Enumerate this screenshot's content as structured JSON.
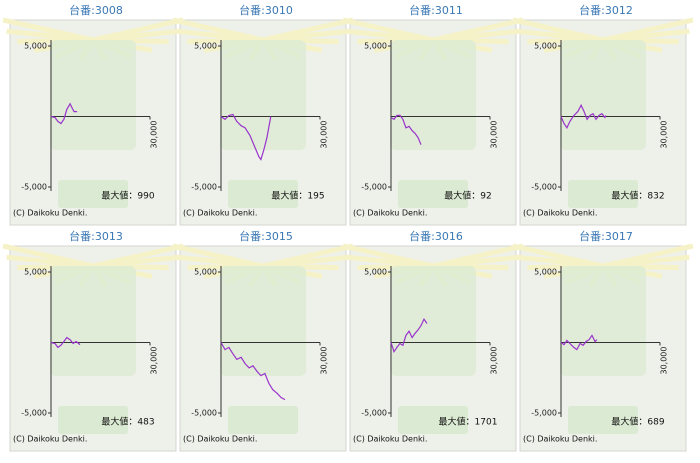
{
  "chart_data": [
    {
      "type": "line",
      "title": "台番:3008",
      "max_label": "最大値：990",
      "copyright": "(C) Daikoku Denki.",
      "xlim": [
        0,
        30000
      ],
      "ylim": [
        -5000,
        5000
      ],
      "xticks": [
        {
          "value": 30000,
          "label": "30,000"
        }
      ],
      "yticks": [
        {
          "value": 5000,
          "label": "5,000"
        },
        {
          "value": -5000,
          "label": "-5,000"
        }
      ],
      "x": [
        0,
        1200,
        2100,
        3000,
        3900,
        4800,
        5800,
        6400,
        7000,
        7900
      ],
      "series": [
        {
          "color": "#9933cc",
          "values": [
            0,
            -70,
            -350,
            -500,
            -200,
            500,
            900,
            600,
            350,
            350
          ]
        }
      ]
    },
    {
      "type": "line",
      "title": "台番:3010",
      "max_label": "最大値：195",
      "copyright": "(C) Daikoku Denki.",
      "xlim": [
        0,
        30000
      ],
      "ylim": [
        -5000,
        5000
      ],
      "xticks": [
        {
          "value": 30000,
          "label": "30,000"
        }
      ],
      "yticks": [
        {
          "value": 5000,
          "label": "5,000"
        },
        {
          "value": -5000,
          "label": "-5,000"
        }
      ],
      "x": [
        0,
        1200,
        2400,
        3600,
        4800,
        6100,
        7300,
        8800,
        10300,
        11500,
        12100,
        13000,
        13900,
        15100
      ],
      "series": [
        {
          "color": "#9933cc",
          "values": [
            0,
            -200,
            70,
            150,
            -350,
            -650,
            -800,
            -1350,
            -2200,
            -2850,
            -3050,
            -2350,
            -1500,
            0
          ]
        }
      ]
    },
    {
      "type": "line",
      "title": "台番:3011",
      "max_label": "最大値：92",
      "copyright": "(C) Daikoku Denki.",
      "xlim": [
        0,
        30000
      ],
      "ylim": [
        -5000,
        5000
      ],
      "xticks": [
        {
          "value": 30000,
          "label": "30,000"
        }
      ],
      "yticks": [
        {
          "value": 5000,
          "label": "5,000"
        },
        {
          "value": -5000,
          "label": "-5,000"
        }
      ],
      "x": [
        0,
        900,
        1800,
        2700,
        3600,
        4500,
        5500,
        6400,
        7300,
        8200,
        9100
      ],
      "series": [
        {
          "color": "#9933cc",
          "values": [
            -70,
            -200,
            70,
            90,
            -200,
            -800,
            -700,
            -1000,
            -1200,
            -1500,
            -2000
          ]
        }
      ]
    },
    {
      "type": "line",
      "title": "台番:3012",
      "max_label": "最大値：832",
      "copyright": "(C) Daikoku Denki.",
      "xlim": [
        0,
        30000
      ],
      "ylim": [
        -5000,
        5000
      ],
      "xticks": [
        {
          "value": 30000,
          "label": "30,000"
        }
      ],
      "yticks": [
        {
          "value": 5000,
          "label": "5,000"
        },
        {
          "value": -5000,
          "label": "-5,000"
        }
      ],
      "x": [
        0,
        900,
        1800,
        2700,
        3900,
        5100,
        6100,
        7000,
        7900,
        8800,
        9700,
        10600,
        11500,
        12400,
        13300,
        13600
      ],
      "series": [
        {
          "color": "#9933cc",
          "values": [
            0,
            -500,
            -800,
            -350,
            70,
            350,
            800,
            350,
            -200,
            70,
            200,
            -200,
            70,
            200,
            -70,
            70
          ]
        }
      ]
    },
    {
      "type": "line",
      "title": "台番:3013",
      "max_label": "最大値：483",
      "copyright": "(C) Daikoku Denki.",
      "xlim": [
        0,
        30000
      ],
      "ylim": [
        -5000,
        5000
      ],
      "xticks": [
        {
          "value": 30000,
          "label": "30,000"
        }
      ],
      "yticks": [
        {
          "value": 5000,
          "label": "5,000"
        },
        {
          "value": -5000,
          "label": "-5,000"
        }
      ],
      "x": [
        0,
        1200,
        2100,
        3000,
        3900,
        4800,
        5800,
        6700,
        7600,
        8800
      ],
      "series": [
        {
          "color": "#9933cc",
          "values": [
            0,
            -70,
            -350,
            -200,
            70,
            350,
            200,
            -70,
            70,
            -150
          ]
        }
      ]
    },
    {
      "type": "line",
      "title": "台番:3015",
      "copyright": "(C) Daikoku Denki.",
      "xlim": [
        0,
        30000
      ],
      "ylim": [
        -5000,
        5000
      ],
      "xticks": [
        {
          "value": 30000,
          "label": "30,000"
        }
      ],
      "yticks": [
        {
          "value": 5000,
          "label": "5,000"
        },
        {
          "value": -5000,
          "label": "-5,000"
        }
      ],
      "x": [
        0,
        1200,
        2400,
        3600,
        4800,
        6100,
        7300,
        8500,
        9700,
        10900,
        12100,
        13300,
        14500,
        15700,
        17000,
        18200,
        19400
      ],
      "series": [
        {
          "color": "#9933cc",
          "values": [
            0,
            -500,
            -350,
            -800,
            -1200,
            -1050,
            -1500,
            -1800,
            -1650,
            -2050,
            -2350,
            -2200,
            -2900,
            -3350,
            -3600,
            -3900,
            -4050
          ]
        }
      ]
    },
    {
      "type": "line",
      "title": "台番:3016",
      "max_label": "最大値：1701",
      "copyright": "(C) Daikoku Denki.",
      "xlim": [
        0,
        30000
      ],
      "ylim": [
        -5000,
        5000
      ],
      "xticks": [
        {
          "value": 30000,
          "label": "30,000"
        }
      ],
      "yticks": [
        {
          "value": 5000,
          "label": "5,000"
        },
        {
          "value": -5000,
          "label": "-5,000"
        }
      ],
      "x": [
        0,
        900,
        1800,
        2700,
        3600,
        4500,
        5500,
        6400,
        7300,
        8200,
        9100,
        10000,
        10900
      ],
      "series": [
        {
          "color": "#9933cc",
          "values": [
            0,
            -650,
            -350,
            -70,
            -200,
            500,
            800,
            350,
            650,
            900,
            1200,
            1650,
            1350
          ]
        }
      ]
    },
    {
      "type": "line",
      "title": "台番:3017",
      "max_label": "最大値：689",
      "copyright": "(C) Daikoku Denki.",
      "xlim": [
        0,
        30000
      ],
      "ylim": [
        -5000,
        5000
      ],
      "xticks": [
        {
          "value": 30000,
          "label": "30,000"
        }
      ],
      "yticks": [
        {
          "value": 5000,
          "label": "5,000"
        },
        {
          "value": -5000,
          "label": "-5,000"
        }
      ],
      "x": [
        0,
        900,
        1800,
        2700,
        3900,
        4800,
        5800,
        6700,
        7600,
        8500,
        9400,
        10300,
        10900
      ],
      "series": [
        {
          "color": "#9933cc",
          "values": [
            0,
            -150,
            150,
            -70,
            -350,
            -500,
            -70,
            -200,
            70,
            200,
            500,
            70,
            200
          ]
        }
      ]
    }
  ]
}
